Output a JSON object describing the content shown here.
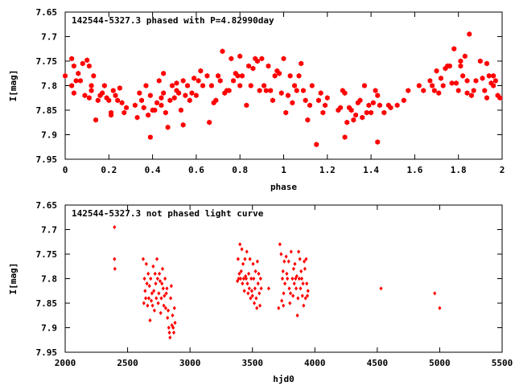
{
  "chart_data": [
    {
      "type": "scatter",
      "title": "142544-5327.3 phased with P=4.82990day",
      "xlabel": "phase",
      "ylabel": "I[mag]",
      "xlim": [
        0,
        2
      ],
      "ylim": [
        7.95,
        7.65
      ],
      "y_inverted": true,
      "grid": false,
      "marker_color": "#ff0000",
      "marker": "hexagon",
      "x_ticks": [
        0,
        0.2,
        0.4,
        0.6,
        0.8,
        1,
        1.2,
        1.4,
        1.6,
        1.8,
        2
      ],
      "x_tick_labels": [
        "0",
        "0.2",
        "0.4",
        "0.6",
        "0.8",
        "1",
        "1.2",
        "1.4",
        "1.6",
        "1.8",
        "2"
      ],
      "y_ticks": [
        7.65,
        7.7,
        7.75,
        7.8,
        7.85,
        7.9,
        7.95
      ],
      "y_tick_labels": [
        "7.65",
        "7.7",
        "7.75",
        "7.8",
        "7.85",
        "7.9",
        "7.95"
      ],
      "points": [
        [
          0.0,
          7.78
        ],
        [
          0.03,
          7.745
        ],
        [
          0.03,
          7.8
        ],
        [
          0.04,
          7.815
        ],
        [
          0.04,
          7.76
        ],
        [
          0.05,
          7.79
        ],
        [
          0.06,
          7.775
        ],
        [
          0.07,
          7.79
        ],
        [
          0.08,
          7.755
        ],
        [
          0.09,
          7.82
        ],
        [
          0.1,
          7.748
        ],
        [
          0.11,
          7.825
        ],
        [
          0.11,
          7.76
        ],
        [
          0.12,
          7.8
        ],
        [
          0.12,
          7.81
        ],
        [
          0.13,
          7.78
        ],
        [
          0.14,
          7.87
        ],
        [
          0.15,
          7.83
        ],
        [
          0.16,
          7.82
        ],
        [
          0.17,
          7.815
        ],
        [
          0.18,
          7.8
        ],
        [
          0.19,
          7.825
        ],
        [
          0.2,
          7.83
        ],
        [
          0.21,
          7.855
        ],
        [
          0.21,
          7.86
        ],
        [
          0.22,
          7.81
        ],
        [
          0.23,
          7.82
        ],
        [
          0.24,
          7.83
        ],
        [
          0.25,
          7.805
        ],
        [
          0.26,
          7.835
        ],
        [
          0.27,
          7.855
        ],
        [
          0.28,
          7.845
        ],
        [
          0.32,
          7.84
        ],
        [
          0.33,
          7.865
        ],
        [
          0.34,
          7.815
        ],
        [
          0.35,
          7.83
        ],
        [
          0.36,
          7.845
        ],
        [
          0.37,
          7.8
        ],
        [
          0.38,
          7.86
        ],
        [
          0.39,
          7.905
        ],
        [
          0.39,
          7.82
        ],
        [
          0.4,
          7.85
        ],
        [
          0.41,
          7.85
        ],
        [
          0.42,
          7.835
        ],
        [
          0.43,
          7.79
        ],
        [
          0.44,
          7.84
        ],
        [
          0.44,
          7.825
        ],
        [
          0.45,
          7.775
        ],
        [
          0.45,
          7.815
        ],
        [
          0.46,
          7.855
        ],
        [
          0.47,
          7.885
        ],
        [
          0.48,
          7.83
        ],
        [
          0.49,
          7.8
        ],
        [
          0.5,
          7.825
        ],
        [
          0.51,
          7.795
        ],
        [
          0.51,
          7.81
        ],
        [
          0.52,
          7.815
        ],
        [
          0.53,
          7.85
        ],
        [
          0.54,
          7.88
        ],
        [
          0.54,
          7.79
        ],
        [
          0.55,
          7.82
        ],
        [
          0.56,
          7.8
        ],
        [
          0.57,
          7.83
        ],
        [
          0.58,
          7.815
        ],
        [
          0.59,
          7.785
        ],
        [
          0.6,
          7.82
        ],
        [
          0.61,
          7.79
        ],
        [
          0.62,
          7.77
        ],
        [
          0.63,
          7.8
        ],
        [
          0.65,
          7.78
        ],
        [
          0.66,
          7.875
        ],
        [
          0.67,
          7.8
        ],
        [
          0.68,
          7.835
        ],
        [
          0.69,
          7.83
        ],
        [
          0.7,
          7.78
        ],
        [
          0.71,
          7.79
        ],
        [
          0.72,
          7.73
        ],
        [
          0.73,
          7.815
        ],
        [
          0.74,
          7.81
        ],
        [
          0.75,
          7.81
        ],
        [
          0.76,
          7.745
        ],
        [
          0.77,
          7.79
        ],
        [
          0.78,
          7.775
        ],
        [
          0.79,
          7.78
        ],
        [
          0.8,
          7.8
        ],
        [
          0.8,
          7.74
        ],
        [
          0.81,
          7.78
        ],
        [
          0.83,
          7.84
        ],
        [
          0.84,
          7.76
        ],
        [
          0.85,
          7.8
        ],
        [
          0.86,
          7.765
        ],
        [
          0.87,
          7.745
        ],
        [
          0.88,
          7.75
        ],
        [
          0.89,
          7.81
        ],
        [
          0.9,
          7.745
        ],
        [
          0.91,
          7.8
        ],
        [
          0.92,
          7.81
        ],
        [
          0.93,
          7.76
        ],
        [
          0.94,
          7.81
        ],
        [
          0.95,
          7.83
        ],
        [
          0.96,
          7.78
        ],
        [
          0.97,
          7.77
        ],
        [
          0.98,
          7.775
        ],
        [
          0.99,
          7.815
        ],
        [
          1.0,
          7.745
        ],
        [
          1.01,
          7.855
        ],
        [
          1.02,
          7.82
        ],
        [
          1.03,
          7.78
        ],
        [
          1.04,
          7.835
        ],
        [
          1.05,
          7.8
        ],
        [
          1.06,
          7.81
        ],
        [
          1.07,
          7.78
        ],
        [
          1.08,
          7.755
        ],
        [
          1.09,
          7.81
        ],
        [
          1.1,
          7.83
        ],
        [
          1.11,
          7.87
        ],
        [
          1.12,
          7.84
        ],
        [
          1.13,
          7.8
        ],
        [
          1.15,
          7.92
        ],
        [
          1.16,
          7.83
        ],
        [
          1.17,
          7.815
        ],
        [
          1.18,
          7.855
        ],
        [
          1.19,
          7.84
        ],
        [
          1.2,
          7.825
        ],
        [
          1.25,
          7.85
        ],
        [
          1.26,
          7.845
        ],
        [
          1.27,
          7.81
        ],
        [
          1.28,
          7.905
        ],
        [
          1.28,
          7.815
        ],
        [
          1.29,
          7.875
        ],
        [
          1.3,
          7.845
        ],
        [
          1.31,
          7.85
        ],
        [
          1.32,
          7.87
        ],
        [
          1.33,
          7.86
        ],
        [
          1.34,
          7.835
        ],
        [
          1.35,
          7.83
        ],
        [
          1.36,
          7.865
        ],
        [
          1.37,
          7.8
        ],
        [
          1.38,
          7.855
        ],
        [
          1.39,
          7.84
        ],
        [
          1.4,
          7.855
        ],
        [
          1.41,
          7.835
        ],
        [
          1.42,
          7.81
        ],
        [
          1.43,
          7.82
        ],
        [
          1.43,
          7.915
        ],
        [
          1.44,
          7.84
        ],
        [
          1.46,
          7.855
        ],
        [
          1.48,
          7.84
        ],
        [
          1.49,
          7.845
        ],
        [
          1.52,
          7.84
        ],
        [
          1.55,
          7.83
        ],
        [
          1.57,
          7.81
        ],
        [
          1.62,
          7.8
        ],
        [
          1.64,
          7.81
        ],
        [
          1.67,
          7.79
        ],
        [
          1.68,
          7.8
        ],
        [
          1.69,
          7.81
        ],
        [
          1.7,
          7.77
        ],
        [
          1.71,
          7.815
        ],
        [
          1.72,
          7.785
        ],
        [
          1.73,
          7.8
        ],
        [
          1.74,
          7.765
        ],
        [
          1.75,
          7.76
        ],
        [
          1.76,
          7.76
        ],
        [
          1.77,
          7.795
        ],
        [
          1.78,
          7.725
        ],
        [
          1.79,
          7.795
        ],
        [
          1.8,
          7.81
        ],
        [
          1.81,
          7.75
        ],
        [
          1.81,
          7.76
        ],
        [
          1.82,
          7.78
        ],
        [
          1.83,
          7.74
        ],
        [
          1.84,
          7.79
        ],
        [
          1.84,
          7.815
        ],
        [
          1.85,
          7.695
        ],
        [
          1.86,
          7.82
        ],
        [
          1.87,
          7.81
        ],
        [
          1.88,
          7.79
        ],
        [
          1.9,
          7.75
        ],
        [
          1.91,
          7.785
        ],
        [
          1.92,
          7.81
        ],
        [
          1.93,
          7.755
        ],
        [
          1.94,
          7.78
        ],
        [
          1.95,
          7.795
        ],
        [
          1.96,
          7.78
        ],
        [
          1.97,
          7.79
        ],
        [
          1.98,
          7.82
        ],
        [
          1.99,
          7.825
        ],
        [
          1.93,
          7.825
        ],
        [
          1.96,
          7.8
        ]
      ]
    },
    {
      "type": "scatter",
      "title": "142544-5327.3 not phased light curve",
      "xlabel": "hjd0",
      "ylabel": "I[mag]",
      "xlim": [
        2000,
        5500
      ],
      "ylim": [
        7.95,
        7.65
      ],
      "y_inverted": true,
      "grid": false,
      "marker_color": "#ff0000",
      "marker": "diamond",
      "x_ticks": [
        2000,
        2500,
        3000,
        3500,
        4000,
        4500,
        5000,
        5500
      ],
      "x_tick_labels": [
        "2000",
        "2500",
        "3000",
        "3500",
        "4000",
        "4500",
        "5000",
        "5500"
      ],
      "y_ticks": [
        7.65,
        7.7,
        7.75,
        7.8,
        7.85,
        7.9,
        7.95
      ],
      "y_tick_labels": [
        "7.65",
        "7.7",
        "7.75",
        "7.8",
        "7.85",
        "7.9",
        "7.95"
      ],
      "points": [
        [
          2395,
          7.695
        ],
        [
          2395,
          7.76
        ],
        [
          2398,
          7.78
        ],
        [
          2625,
          7.76
        ],
        [
          2630,
          7.85
        ],
        [
          2635,
          7.8
        ],
        [
          2640,
          7.825
        ],
        [
          2645,
          7.84
        ],
        [
          2650,
          7.77
        ],
        [
          2655,
          7.81
        ],
        [
          2660,
          7.855
        ],
        [
          2665,
          7.79
        ],
        [
          2670,
          7.84
        ],
        [
          2675,
          7.815
        ],
        [
          2680,
          7.885
        ],
        [
          2685,
          7.8
        ],
        [
          2690,
          7.845
        ],
        [
          2695,
          7.83
        ],
        [
          2700,
          7.855
        ],
        [
          2705,
          7.775
        ],
        [
          2710,
          7.825
        ],
        [
          2715,
          7.865
        ],
        [
          2720,
          7.79
        ],
        [
          2725,
          7.81
        ],
        [
          2730,
          7.84
        ],
        [
          2735,
          7.76
        ],
        [
          2740,
          7.8
        ],
        [
          2745,
          7.85
        ],
        [
          2750,
          7.83
        ],
        [
          2755,
          7.79
        ],
        [
          2760,
          7.805
        ],
        [
          2765,
          7.87
        ],
        [
          2770,
          7.84
        ],
        [
          2775,
          7.81
        ],
        [
          2780,
          7.78
        ],
        [
          2785,
          7.82
        ],
        [
          2790,
          7.855
        ],
        [
          2795,
          7.835
        ],
        [
          2800,
          7.8
        ],
        [
          2805,
          7.86
        ],
        [
          2810,
          7.83
        ],
        [
          2815,
          7.82
        ],
        [
          2820,
          7.88
        ],
        [
          2825,
          7.865
        ],
        [
          2830,
          7.9
        ],
        [
          2835,
          7.91
        ],
        [
          2840,
          7.92
        ],
        [
          2845,
          7.84
        ],
        [
          2850,
          7.815
        ],
        [
          2855,
          7.895
        ],
        [
          2860,
          7.875
        ],
        [
          2865,
          7.9
        ],
        [
          2870,
          7.91
        ],
        [
          2875,
          7.86
        ],
        [
          2880,
          7.89
        ],
        [
          3380,
          7.805
        ],
        [
          3385,
          7.76
        ],
        [
          3390,
          7.8
        ],
        [
          3395,
          7.79
        ],
        [
          3400,
          7.73
        ],
        [
          3405,
          7.8
        ],
        [
          3410,
          7.785
        ],
        [
          3415,
          7.74
        ],
        [
          3420,
          7.81
        ],
        [
          3425,
          7.77
        ],
        [
          3430,
          7.8
        ],
        [
          3435,
          7.825
        ],
        [
          3440,
          7.76
        ],
        [
          3445,
          7.795
        ],
        [
          3450,
          7.8
        ],
        [
          3455,
          7.745
        ],
        [
          3460,
          7.81
        ],
        [
          3465,
          7.83
        ],
        [
          3470,
          7.79
        ],
        [
          3475,
          7.82
        ],
        [
          3480,
          7.76
        ],
        [
          3485,
          7.84
        ],
        [
          3490,
          7.8
        ],
        [
          3495,
          7.825
        ],
        [
          3500,
          7.835
        ],
        [
          3505,
          7.77
        ],
        [
          3510,
          7.8
        ],
        [
          3515,
          7.85
        ],
        [
          3520,
          7.82
        ],
        [
          3525,
          7.785
        ],
        [
          3530,
          7.84
        ],
        [
          3535,
          7.86
        ],
        [
          3540,
          7.765
        ],
        [
          3545,
          7.81
        ],
        [
          3550,
          7.79
        ],
        [
          3555,
          7.83
        ],
        [
          3560,
          7.855
        ],
        [
          3565,
          7.8
        ],
        [
          3570,
          7.82
        ],
        [
          3630,
          7.82
        ],
        [
          3720,
          7.73
        ],
        [
          3730,
          7.75
        ],
        [
          3740,
          7.8
        ],
        [
          3745,
          7.785
        ],
        [
          3750,
          7.83
        ],
        [
          3755,
          7.765
        ],
        [
          3760,
          7.81
        ],
        [
          3770,
          7.755
        ],
        [
          3775,
          7.79
        ],
        [
          3780,
          7.8
        ],
        [
          3790,
          7.765
        ],
        [
          3795,
          7.82
        ],
        [
          3800,
          7.85
        ],
        [
          3805,
          7.83
        ],
        [
          3810,
          7.745
        ],
        [
          3820,
          7.8
        ],
        [
          3825,
          7.835
        ],
        [
          3830,
          7.78
        ],
        [
          3835,
          7.81
        ],
        [
          3840,
          7.77
        ],
        [
          3845,
          7.8
        ],
        [
          3850,
          7.82
        ],
        [
          3855,
          7.795
        ],
        [
          3860,
          7.875
        ],
        [
          3865,
          7.84
        ],
        [
          3870,
          7.745
        ],
        [
          3875,
          7.8
        ],
        [
          3880,
          7.76
        ],
        [
          3885,
          7.82
        ],
        [
          3890,
          7.785
        ],
        [
          3895,
          7.8
        ],
        [
          3900,
          7.835
        ],
        [
          3905,
          7.81
        ],
        [
          3910,
          7.855
        ],
        [
          3915,
          7.765
        ],
        [
          3920,
          7.78
        ],
        [
          3925,
          7.84
        ],
        [
          3930,
          7.76
        ],
        [
          3935,
          7.81
        ],
        [
          3940,
          7.835
        ],
        [
          3945,
          7.825
        ],
        [
          3710,
          7.86
        ],
        [
          3735,
          7.845
        ],
        [
          3748,
          7.855
        ],
        [
          4530,
          7.82
        ],
        [
          4960,
          7.83
        ],
        [
          5000,
          7.86
        ]
      ]
    }
  ]
}
